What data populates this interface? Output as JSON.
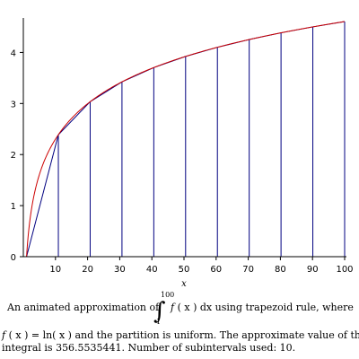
{
  "chart_data": {
    "type": "line",
    "x_axis": {
      "label": "x",
      "range": [
        0,
        100
      ],
      "ticks": [
        "10",
        "20",
        "30",
        "40",
        "50",
        "60",
        "70",
        "80",
        "90",
        "100"
      ]
    },
    "y_axis": {
      "label": "",
      "range": [
        0,
        4.6052
      ],
      "ticks": [
        "0",
        "1",
        "2",
        "3",
        "4"
      ]
    },
    "function": "ln(x)",
    "series": [
      {
        "x": [
          1,
          11,
          21,
          31,
          41,
          51,
          61,
          71,
          81,
          91,
          100
        ],
        "y": [
          0,
          2.398,
          3.045,
          3.434,
          3.714,
          3.932,
          4.111,
          4.263,
          4.394,
          4.511,
          4.605
        ]
      }
    ],
    "partition_x": [
      1,
      10.9,
      20.8,
      30.7,
      40.6,
      50.5,
      60.4,
      70.3,
      80.2,
      90.1,
      100
    ],
    "colors": {
      "curve": "#cc0000",
      "trapezoid": "#000080",
      "axis": "#000000"
    },
    "grid": false,
    "legend": "none"
  },
  "caption": {
    "line1_pre": "An animated approximation of",
    "integral_upper": "100",
    "integral_lower": "1",
    "integral_sign": "∫",
    "line1_mid": "f",
    "line1_paren": "( x )",
    "line1_dx": "dx",
    "line1_post": "using trapezoid rule, where",
    "line2_f": "f",
    "line2_rest": "( x ) = ln( x )  and the partition is uniform.  The approximate value of the",
    "line3": "integral is 356.5535441.  Number of subintervals used: 10."
  }
}
